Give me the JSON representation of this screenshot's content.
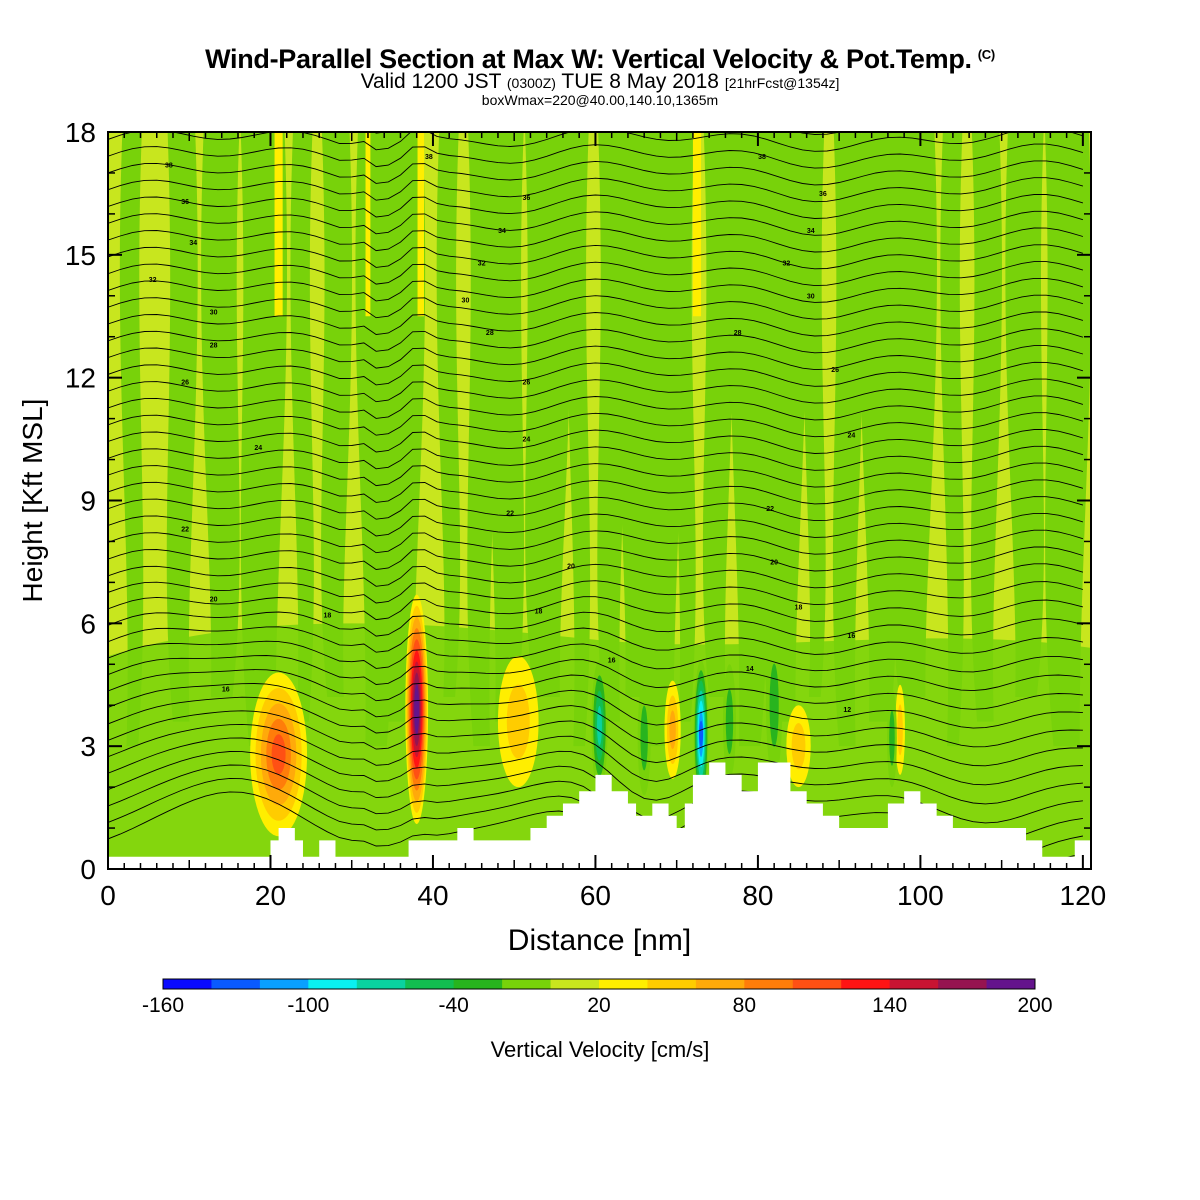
{
  "title": {
    "main": "Wind-Parallel Section at Max W: Vertical Velocity & Pot.Temp.",
    "main_suffix": "(C)",
    "valid_a": "Valid 1200 JST",
    "valid_b": "(0300Z)",
    "valid_c": "TUE 8 May 2018",
    "valid_d": "[21hrFcst@1354z]",
    "box": "boxWmax=220@40.00,140.10,1365m"
  },
  "chart_data": {
    "type": "heatmap",
    "xlabel": "Distance [nm]",
    "ylabel": "Height [Kft MSL]",
    "xlim": [
      0,
      121
    ],
    "ylim": [
      0,
      18
    ],
    "xticks": [
      "0",
      "20",
      "40",
      "60",
      "80",
      "100",
      "120"
    ],
    "xtick_values": [
      0,
      20,
      40,
      60,
      80,
      100,
      120
    ],
    "yticks": [
      "0",
      "3",
      "6",
      "9",
      "12",
      "15",
      "18"
    ],
    "ytick_values": [
      0,
      3,
      6,
      9,
      12,
      15,
      18
    ],
    "background_color": "#c8e61e",
    "updraft_cores": [
      {
        "x": 38.0,
        "y": 3.9,
        "w_cm_s": 200,
        "half_width_nm": 1.4,
        "half_height_kft": 2.8
      },
      {
        "x": 21.0,
        "y": 2.8,
        "w_cm_s": 90,
        "half_width_nm": 3.5,
        "half_height_kft": 2.0
      },
      {
        "x": 50.5,
        "y": 3.6,
        "w_cm_s": 40,
        "half_width_nm": 2.5,
        "half_height_kft": 1.6
      },
      {
        "x": 69.5,
        "y": 3.4,
        "w_cm_s": 50,
        "half_width_nm": 1.0,
        "half_height_kft": 1.2
      },
      {
        "x": 85.0,
        "y": 3.0,
        "w_cm_s": 40,
        "half_width_nm": 1.5,
        "half_height_kft": 1.0
      },
      {
        "x": 97.5,
        "y": 3.4,
        "w_cm_s": 30,
        "half_width_nm": 0.6,
        "half_height_kft": 1.1
      }
    ],
    "downdraft_cores": [
      {
        "x": 73.0,
        "y": 3.3,
        "w_cm_s": -130,
        "half_width_nm": 0.9,
        "half_height_kft": 1.8
      },
      {
        "x": 60.5,
        "y": 3.5,
        "w_cm_s": -80,
        "half_width_nm": 1.0,
        "half_height_kft": 1.6
      },
      {
        "x": 66.0,
        "y": 3.2,
        "w_cm_s": -40,
        "half_width_nm": 0.8,
        "half_height_kft": 1.4
      },
      {
        "x": 76.5,
        "y": 3.6,
        "w_cm_s": -40,
        "half_width_nm": 0.8,
        "half_height_kft": 1.4
      },
      {
        "x": 82.0,
        "y": 4.0,
        "w_cm_s": -40,
        "half_width_nm": 1.0,
        "half_height_kft": 1.8
      },
      {
        "x": 96.5,
        "y": 3.2,
        "w_cm_s": -40,
        "half_width_nm": 0.6,
        "half_height_kft": 1.2
      }
    ],
    "terrain_kft": [
      [
        0,
        0.3
      ],
      [
        20,
        0.3
      ],
      [
        20,
        0.7
      ],
      [
        21,
        0.7
      ],
      [
        21,
        1.0
      ],
      [
        23,
        1.0
      ],
      [
        23,
        0.7
      ],
      [
        24,
        0.7
      ],
      [
        24,
        0.3
      ],
      [
        26,
        0.3
      ],
      [
        26,
        0.7
      ],
      [
        28,
        0.7
      ],
      [
        28,
        0.3
      ],
      [
        37,
        0.3
      ],
      [
        37,
        0.7
      ],
      [
        43,
        0.7
      ],
      [
        43,
        1.0
      ],
      [
        45,
        1.0
      ],
      [
        45,
        0.7
      ],
      [
        52,
        0.7
      ],
      [
        52,
        1.0
      ],
      [
        54,
        1.0
      ],
      [
        54,
        1.3
      ],
      [
        56,
        1.3
      ],
      [
        56,
        1.6
      ],
      [
        58,
        1.6
      ],
      [
        58,
        1.9
      ],
      [
        60,
        1.9
      ],
      [
        60,
        2.3
      ],
      [
        62,
        2.3
      ],
      [
        62,
        1.9
      ],
      [
        64,
        1.9
      ],
      [
        64,
        1.6
      ],
      [
        65,
        1.6
      ],
      [
        65,
        1.3
      ],
      [
        67,
        1.3
      ],
      [
        67,
        1.6
      ],
      [
        69,
        1.6
      ],
      [
        69,
        1.3
      ],
      [
        70,
        1.3
      ],
      [
        70,
        1.0
      ],
      [
        71,
        1.0
      ],
      [
        71,
        1.6
      ],
      [
        72,
        1.6
      ],
      [
        72,
        2.3
      ],
      [
        74,
        2.3
      ],
      [
        74,
        2.6
      ],
      [
        76,
        2.6
      ],
      [
        76,
        2.3
      ],
      [
        78,
        2.3
      ],
      [
        78,
        1.9
      ],
      [
        80,
        1.9
      ],
      [
        80,
        2.6
      ],
      [
        84,
        2.6
      ],
      [
        84,
        1.9
      ],
      [
        86,
        1.9
      ],
      [
        86,
        1.6
      ],
      [
        88,
        1.6
      ],
      [
        88,
        1.3
      ],
      [
        90,
        1.3
      ],
      [
        90,
        1.0
      ],
      [
        96,
        1.0
      ],
      [
        96,
        1.6
      ],
      [
        98,
        1.6
      ],
      [
        98,
        1.9
      ],
      [
        100,
        1.9
      ],
      [
        100,
        1.6
      ],
      [
        102,
        1.6
      ],
      [
        102,
        1.3
      ],
      [
        104,
        1.3
      ],
      [
        104,
        1.0
      ],
      [
        113,
        1.0
      ],
      [
        113,
        0.7
      ],
      [
        115,
        0.7
      ],
      [
        115,
        0.3
      ],
      [
        119,
        0.3
      ],
      [
        119,
        0.7
      ],
      [
        121,
        0.7
      ]
    ],
    "theta_labels": [
      {
        "text": "38",
        "x": 7.5,
        "y": 17.2
      },
      {
        "text": "36",
        "x": 9.5,
        "y": 16.3
      },
      {
        "text": "34",
        "x": 10.5,
        "y": 15.3
      },
      {
        "text": "32",
        "x": 5.5,
        "y": 14.4
      },
      {
        "text": "30",
        "x": 13,
        "y": 13.6
      },
      {
        "text": "28",
        "x": 13,
        "y": 12.8
      },
      {
        "text": "26",
        "x": 9.5,
        "y": 11.9
      },
      {
        "text": "24",
        "x": 18.5,
        "y": 10.3
      },
      {
        "text": "22",
        "x": 9.5,
        "y": 8.3
      },
      {
        "text": "20",
        "x": 13,
        "y": 6.6
      },
      {
        "text": "18",
        "x": 27,
        "y": 6.2
      },
      {
        "text": "16",
        "x": 14.5,
        "y": 4.4
      },
      {
        "text": "38",
        "x": 39.5,
        "y": 17.4
      },
      {
        "text": "36",
        "x": 51.5,
        "y": 16.4
      },
      {
        "text": "34",
        "x": 48.5,
        "y": 15.6
      },
      {
        "text": "32",
        "x": 46,
        "y": 14.8
      },
      {
        "text": "30",
        "x": 44,
        "y": 13.9
      },
      {
        "text": "28",
        "x": 47,
        "y": 13.1
      },
      {
        "text": "26",
        "x": 51.5,
        "y": 11.9
      },
      {
        "text": "24",
        "x": 51.5,
        "y": 10.5
      },
      {
        "text": "22",
        "x": 49.5,
        "y": 8.7
      },
      {
        "text": "20",
        "x": 57,
        "y": 7.4
      },
      {
        "text": "18",
        "x": 53,
        "y": 6.3
      },
      {
        "text": "16",
        "x": 62,
        "y": 5.1
      },
      {
        "text": "38",
        "x": 80.5,
        "y": 17.4
      },
      {
        "text": "36",
        "x": 88,
        "y": 16.5
      },
      {
        "text": "34",
        "x": 86.5,
        "y": 15.6
      },
      {
        "text": "32",
        "x": 83.5,
        "y": 14.8
      },
      {
        "text": "30",
        "x": 86.5,
        "y": 14.0
      },
      {
        "text": "28",
        "x": 77.5,
        "y": 13.1
      },
      {
        "text": "26",
        "x": 89.5,
        "y": 12.2
      },
      {
        "text": "24",
        "x": 91.5,
        "y": 10.6
      },
      {
        "text": "22",
        "x": 81.5,
        "y": 8.8
      },
      {
        "text": "20",
        "x": 82,
        "y": 7.5
      },
      {
        "text": "18",
        "x": 85,
        "y": 6.4
      },
      {
        "text": "16",
        "x": 91.5,
        "y": 5.7
      },
      {
        "text": "14",
        "x": 79,
        "y": 4.9
      },
      {
        "text": "12",
        "x": 91,
        "y": 3.9
      }
    ],
    "colorbar": {
      "label": "Vertical Velocity [cm/s]",
      "ticks": [
        "-160",
        "-100",
        "-40",
        "20",
        "80",
        "140",
        "200"
      ],
      "colors": [
        "#0a0aff",
        "#0a5aff",
        "#0aa0ff",
        "#0af0f0",
        "#0ad2a0",
        "#12be50",
        "#28b41e",
        "#78d20a",
        "#c8e61e",
        "#ffee00",
        "#ffcc00",
        "#ffaa0a",
        "#ff7d0a",
        "#ff5014",
        "#ff1414",
        "#c81432",
        "#961450",
        "#64148c"
      ]
    }
  }
}
